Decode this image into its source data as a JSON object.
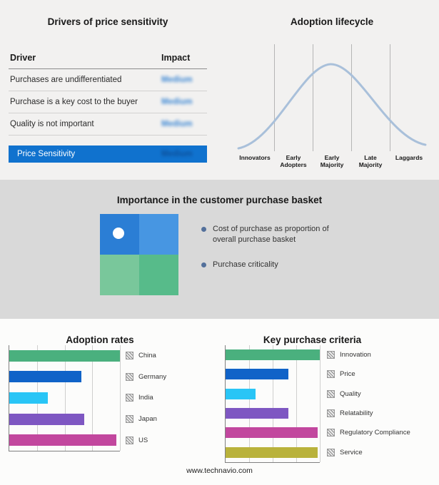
{
  "drivers_panel": {
    "title": "Drivers of price sensitivity",
    "col_driver": "Driver",
    "col_impact": "Impact",
    "rows": [
      {
        "driver": "Purchases are undifferentiated",
        "impact": "Medium"
      },
      {
        "driver": "Purchase is a key cost to the buyer",
        "impact": "Medium"
      },
      {
        "driver": "Quality is not important",
        "impact": "Medium"
      }
    ],
    "highlight_row": {
      "label": "Price Sensitivity",
      "impact": "Medium"
    },
    "highlight_color": "#1072ce"
  },
  "basket_panel": {
    "title": "Importance in the customer purchase basket",
    "bullets": [
      "Cost of purchase as proportion of overall purchase basket",
      "Purchase criticality"
    ],
    "quadrant_colors": {
      "top_left": "#2b7ed5",
      "top_right": "#4796e2",
      "bottom_left": "#79c79b",
      "bottom_right": "#57bb8a"
    }
  },
  "footer": {
    "url": "www.technavio.com"
  },
  "chart_data": [
    {
      "type": "line",
      "title": "Adoption lifecycle",
      "x": [
        "Innovators",
        "Early Adopters",
        "Early Majority",
        "Late Majority",
        "Laggards"
      ],
      "y_relative": [
        3,
        40,
        100,
        40,
        3
      ],
      "description": "Bell-shaped adoption curve peaking at Early Majority",
      "curve_color": "#a9c0da",
      "grid": true,
      "legend": "none"
    },
    {
      "type": "bar",
      "title": "Adoption rates",
      "orientation": "horizontal",
      "categories": [
        "China",
        "Germany",
        "India",
        "Japan",
        "US"
      ],
      "values": [
        100,
        65,
        35,
        68,
        97
      ],
      "xlim": [
        0,
        100
      ],
      "colors": [
        "#4ab07e",
        "#1063c8",
        "#29c5f6",
        "#7e57c2",
        "#c2479e"
      ],
      "grid": true
    },
    {
      "type": "bar",
      "title": "Key purchase criteria",
      "orientation": "horizontal",
      "categories": [
        "Innovation",
        "Price",
        "Quality",
        "Relatability",
        "Regulatory Compliance",
        "Service"
      ],
      "values": [
        100,
        67,
        32,
        67,
        98,
        98
      ],
      "xlim": [
        0,
        100
      ],
      "colors": [
        "#4ab07e",
        "#1063c8",
        "#29c5f6",
        "#7e57c2",
        "#c2479e",
        "#b9b23b"
      ],
      "grid": true
    }
  ]
}
